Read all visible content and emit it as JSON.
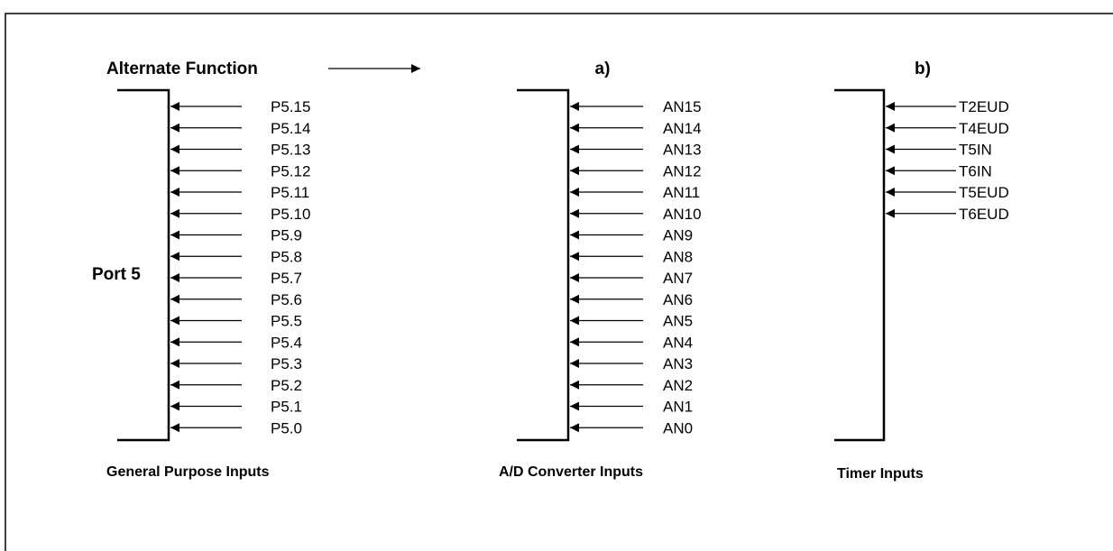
{
  "heading": "Alternate Function",
  "port_label": "Port 5",
  "columns": [
    {
      "id": "port",
      "marker": "",
      "caption": "General Purpose Inputs",
      "pins": [
        "P5.15",
        "P5.14",
        "P5.13",
        "P5.12",
        "P5.11",
        "P5.10",
        "P5.9",
        "P5.8",
        "P5.7",
        "P5.6",
        "P5.5",
        "P5.4",
        "P5.3",
        "P5.2",
        "P5.1",
        "P5.0"
      ]
    },
    {
      "id": "adc",
      "marker": "a)",
      "caption": "A/D Converter Inputs",
      "pins": [
        "AN15",
        "AN14",
        "AN13",
        "AN12",
        "AN11",
        "AN10",
        "AN9",
        "AN8",
        "AN7",
        "AN6",
        "AN5",
        "AN4",
        "AN3",
        "AN2",
        "AN1",
        "AN0"
      ]
    },
    {
      "id": "timer",
      "marker": "b)",
      "caption": "Timer Inputs",
      "pins": [
        "T2EUD",
        "T4EUD",
        "T5IN",
        "T6IN",
        "T5EUD",
        "T6EUD"
      ]
    }
  ]
}
